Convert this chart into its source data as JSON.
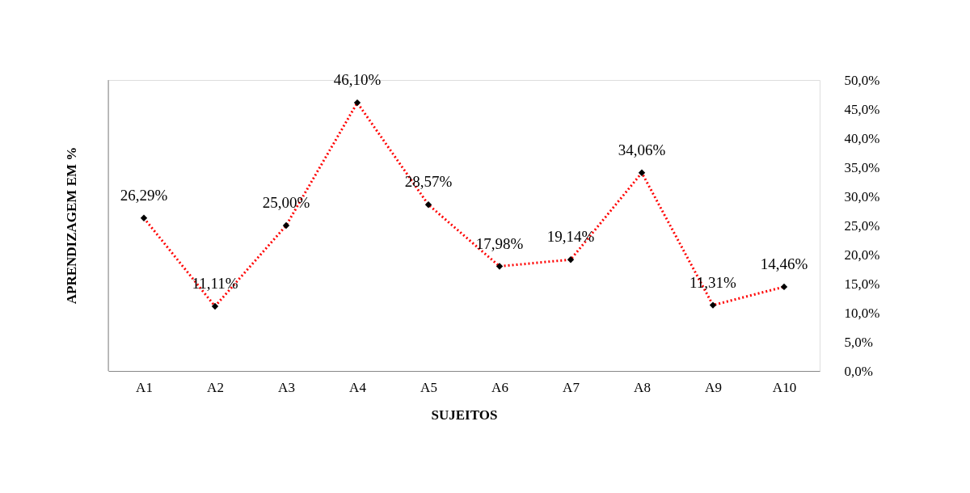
{
  "chart_data": {
    "type": "line",
    "xlabel": "SUJEITOS",
    "ylabel": "APRENDIZAGEM EM %",
    "categories": [
      "A1",
      "A2",
      "A3",
      "A4",
      "A5",
      "A6",
      "A7",
      "A8",
      "A9",
      "A10"
    ],
    "series": [
      {
        "color": "#ff0000",
        "values": [
          26.29,
          11.11,
          25.0,
          46.1,
          28.57,
          17.98,
          19.14,
          34.06,
          11.31,
          14.46
        ],
        "value_labels": [
          "26,29%",
          "11,11%",
          "25,00%",
          "46,10%",
          "28,57%",
          "17,98%",
          "19,14%",
          "34,06%",
          "11,31%",
          "14,46%"
        ]
      }
    ],
    "ylim": [
      0,
      50
    ],
    "yticks": [
      {
        "value": 0,
        "label": "0,0%"
      },
      {
        "value": 5,
        "label": "5,0%"
      },
      {
        "value": 10,
        "label": "10,0%"
      },
      {
        "value": 15,
        "label": "15,0%"
      },
      {
        "value": 20,
        "label": "20,0%"
      },
      {
        "value": 25,
        "label": "25,0%"
      },
      {
        "value": 30,
        "label": "30,0%"
      },
      {
        "value": 35,
        "label": "35,0%"
      },
      {
        "value": 40,
        "label": "40,0%"
      },
      {
        "value": 45,
        "label": "45,0%"
      },
      {
        "value": 50,
        "label": "50,0%"
      }
    ],
    "marker": "diamond",
    "line_style": "dotted",
    "grid": false
  }
}
